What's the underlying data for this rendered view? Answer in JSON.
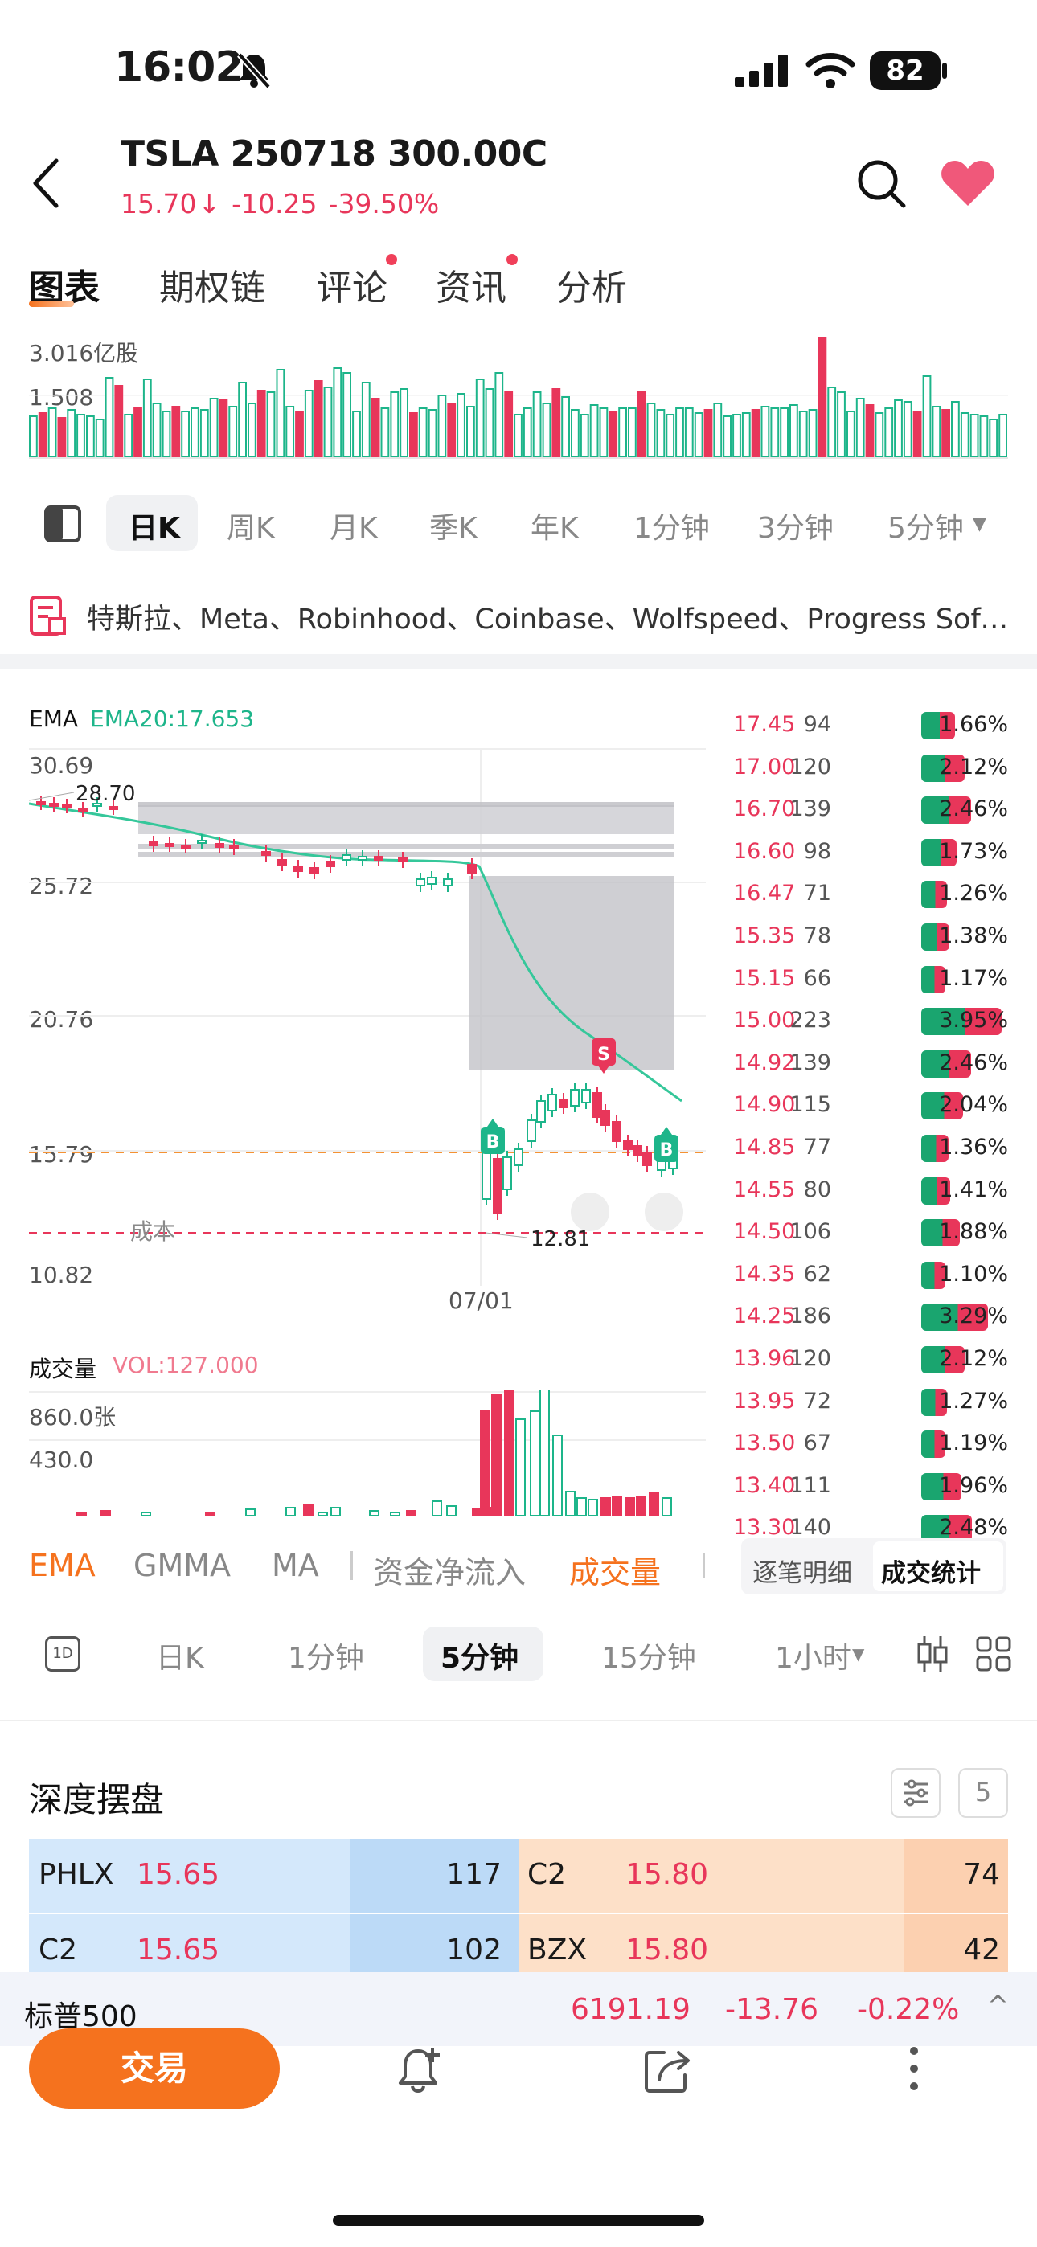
{
  "status_bar": {
    "time": "16:02",
    "battery": "82"
  },
  "header": {
    "ticker": "TSLA 250718 300.00C",
    "price": "15.70",
    "change": "-10.25",
    "change_pct": "-39.50%"
  },
  "tabs": [
    {
      "label": "图表",
      "active": true
    },
    {
      "label": "期权链"
    },
    {
      "label": "评论",
      "dot": true
    },
    {
      "label": "资讯",
      "dot": true
    },
    {
      "label": "分析"
    }
  ],
  "underlying_volume": {
    "top_label": "3.016亿股",
    "mid_label": "1.508"
  },
  "period_bar": [
    "日K",
    "周K",
    "月K",
    "季K",
    "年K",
    "1分钟",
    "3分钟",
    "5分钟"
  ],
  "news": "特斯拉、Meta、Robinhood、Coinbase、Wolfspeed、Progress Softw...",
  "chart": {
    "ema_label": "EMA",
    "ema20": "EMA20:17.653",
    "y_ticks": [
      "30.69",
      "25.72",
      "20.76",
      "15.79",
      "10.82"
    ],
    "high_label": "28.70",
    "low_label": "12.81",
    "cost_label": "成本",
    "date_label": "07/01",
    "signal_s": "S",
    "signal_b": "B"
  },
  "chart_volume": {
    "title": "成交量",
    "vol": "VOL:127.000",
    "ticks": [
      "860.0张",
      "430.0"
    ]
  },
  "price_dist": [
    {
      "price": "17.45",
      "qty": "94",
      "pct": "1.66%"
    },
    {
      "price": "17.00",
      "qty": "120",
      "pct": "2.12%"
    },
    {
      "price": "16.70",
      "qty": "139",
      "pct": "2.46%"
    },
    {
      "price": "16.60",
      "qty": "98",
      "pct": "1.73%"
    },
    {
      "price": "16.47",
      "qty": "71",
      "pct": "1.26%"
    },
    {
      "price": "15.35",
      "qty": "78",
      "pct": "1.38%"
    },
    {
      "price": "15.15",
      "qty": "66",
      "pct": "1.17%"
    },
    {
      "price": "15.00",
      "qty": "223",
      "pct": "3.95%"
    },
    {
      "price": "14.92",
      "qty": "139",
      "pct": "2.46%"
    },
    {
      "price": "14.90",
      "qty": "115",
      "pct": "2.04%"
    },
    {
      "price": "14.85",
      "qty": "77",
      "pct": "1.36%"
    },
    {
      "price": "14.55",
      "qty": "80",
      "pct": "1.41%"
    },
    {
      "price": "14.50",
      "qty": "106",
      "pct": "1.88%"
    },
    {
      "price": "14.35",
      "qty": "62",
      "pct": "1.10%"
    },
    {
      "price": "14.25",
      "qty": "186",
      "pct": "3.29%"
    },
    {
      "price": "13.96",
      "qty": "120",
      "pct": "2.12%"
    },
    {
      "price": "13.95",
      "qty": "72",
      "pct": "1.27%"
    },
    {
      "price": "13.50",
      "qty": "67",
      "pct": "1.19%"
    },
    {
      "price": "13.40",
      "qty": "111",
      "pct": "1.96%"
    },
    {
      "price": "13.30",
      "qty": "140",
      "pct": "2.48%"
    }
  ],
  "indicator_tabs": [
    "EMA",
    "GMMA",
    "MA",
    "资金净流入",
    "成交量"
  ],
  "dist_tabs": [
    "逐笔明细",
    "成交统计"
  ],
  "period_bar2": [
    "1D",
    "日K",
    "1分钟",
    "5分钟",
    "15分钟",
    "1小时"
  ],
  "depth": {
    "title": "深度摆盘",
    "rows": [
      {
        "bid_ex": "PHLX",
        "bid_price": "15.65",
        "bid_size": "117",
        "ask_ex": "C2",
        "ask_price": "15.80",
        "ask_size": "74"
      },
      {
        "bid_ex": "C2",
        "bid_price": "15.65",
        "bid_size": "102",
        "ask_ex": "BZX",
        "ask_price": "15.80",
        "ask_size": "42"
      }
    ]
  },
  "index_bar": {
    "name": "标普500",
    "value": "6191.19",
    "change": "-13.76",
    "pct": "-0.22%"
  },
  "bottom": {
    "trade": "交易"
  }
}
